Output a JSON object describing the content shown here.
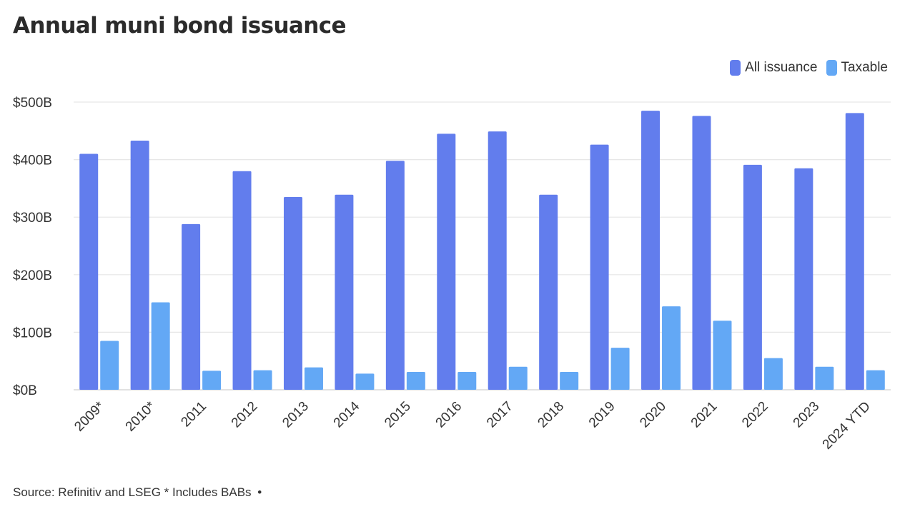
{
  "header": {
    "title": "Annual muni bond issuance"
  },
  "legend": {
    "items": [
      {
        "label": "All issuance",
        "color": "#627ded"
      },
      {
        "label": "Taxable",
        "color": "#63a8f5"
      }
    ]
  },
  "footer": {
    "source": "Source: Refinitiv and LSEG * Includes BABs",
    "dot": "•"
  },
  "chart_data": {
    "type": "bar",
    "categories": [
      "2009*",
      "2010*",
      "2011",
      "2012",
      "2013",
      "2014",
      "2015",
      "2016",
      "2017",
      "2018",
      "2019",
      "2020",
      "2021",
      "2022",
      "2023",
      "2024 YTD"
    ],
    "series": [
      {
        "name": "All issuance",
        "color": "#627ded",
        "values": [
          410,
          433,
          288,
          380,
          335,
          339,
          398,
          445,
          449,
          339,
          426,
          485,
          476,
          391,
          385,
          481
        ]
      },
      {
        "name": "Taxable",
        "color": "#63a8f5",
        "values": [
          85,
          152,
          33,
          34,
          39,
          28,
          31,
          31,
          40,
          31,
          73,
          145,
          120,
          55,
          40,
          34
        ]
      }
    ],
    "yticks": [
      0,
      100,
      200,
      300,
      400,
      500
    ],
    "ytick_labels": [
      "$0B",
      "$100B",
      "$200B",
      "$300B",
      "$400B",
      "$500B"
    ],
    "ylim": [
      0,
      500
    ],
    "grid": true,
    "legend_position": "top-right",
    "xlabel": "",
    "ylabel": ""
  }
}
